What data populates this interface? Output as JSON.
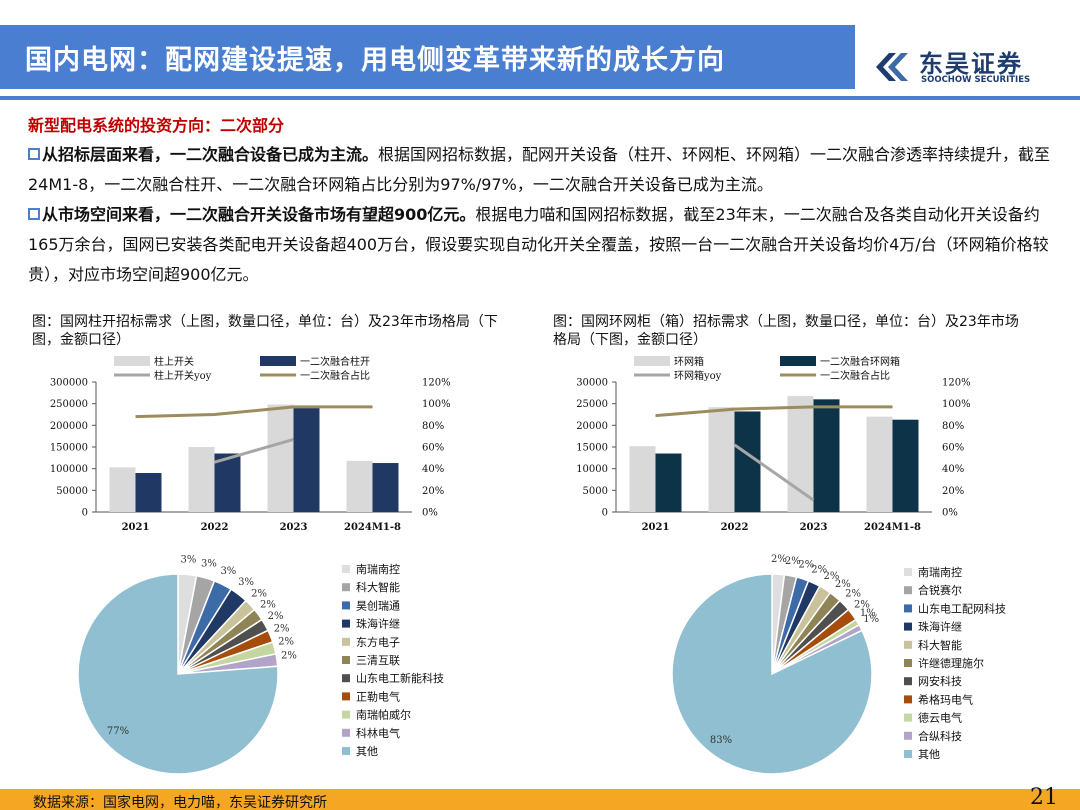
{
  "header": {
    "title": "国内电网：配网建设提速，用电侧变革带来新的成长方向",
    "logo_cn": "东吴证券",
    "logo_en": "SOOCHOW SECURITIES",
    "color": "#4a7ed1"
  },
  "subtitle": "新型配电系统的投资方向：二次部分",
  "para1": {
    "bold": "从招标层面来看，一二次融合设备已成为主流。",
    "text": "根据国网招标数据，配网开关设备（柱开、环网柜、环网箱）一二次融合渗透率持续提升，截至24M1-8，一二次融合柱开、一二次融合环网箱占比分别为97%/97%，一二次融合开关设备已成为主流。"
  },
  "para2": {
    "bold": "从市场空间来看，一二次融合开关设备市场有望超900亿元。",
    "text": "根据电力喵和国网招标数据，截至23年末，一二次融合及各类自动化开关设备约165万余台，国网已安装各类配电开关设备超400万台，假设要实现自动化开关全覆盖，按照一台一二次融合开关设备均价4万/台（环网箱价格较贵），对应市场空间超900亿元。"
  },
  "captions": {
    "left": "图：国网柱开招标需求（上图，数量口径，单位：台）及23年市场格局（下图，金额口径）",
    "right": "图：国网环网柜（箱）招标需求（上图，数量口径，单位：台）及23年市场格局（下图，金额口径）"
  },
  "footer": {
    "source": "数据来源：国家电网，电力喵，东吴证券研究所",
    "page": "21"
  },
  "chart_data": [
    {
      "type": "bar",
      "categories": [
        "2021",
        "2022",
        "2023",
        "2024M1-8"
      ],
      "series": [
        {
          "name": "柱上开关",
          "kind": "bar",
          "axis": "left",
          "color": "#d9d9d9",
          "values": [
            103000,
            150000,
            248000,
            118000
          ]
        },
        {
          "name": "一二次融合柱开",
          "kind": "bar",
          "axis": "left",
          "color": "#1f3864",
          "values": [
            90000,
            135000,
            243000,
            113000
          ]
        },
        {
          "name": "柱上开关yoy",
          "kind": "line",
          "axis": "right",
          "color": "#a6a6a6",
          "values": [
            null,
            0.46,
            0.67,
            null
          ]
        },
        {
          "name": "一二次融合占比",
          "kind": "line",
          "axis": "right",
          "color": "#9c8c5e",
          "values": [
            0.88,
            0.9,
            0.97,
            0.97
          ]
        }
      ],
      "ylim": [
        0,
        300000
      ],
      "yticks": [
        "300000",
        "250000",
        "200000",
        "150000",
        "100000",
        "50000",
        "0"
      ],
      "y2lim": [
        0,
        1.2
      ],
      "y2ticks": [
        "120%",
        "100%",
        "80%",
        "60%",
        "40%",
        "20%",
        "0%"
      ],
      "legend": "top"
    },
    {
      "type": "bar",
      "categories": [
        "2021",
        "2022",
        "2023",
        "2024M1-8"
      ],
      "series": [
        {
          "name": "环网箱",
          "kind": "bar",
          "axis": "left",
          "color": "#d9d9d9",
          "values": [
            15200,
            24200,
            26800,
            22000
          ]
        },
        {
          "name": "一二次融合环网箱",
          "kind": "bar",
          "axis": "left",
          "color": "#0d3349",
          "values": [
            13500,
            23200,
            26000,
            21300
          ]
        },
        {
          "name": "环网箱yoy",
          "kind": "line",
          "axis": "right",
          "color": "#a6a6a6",
          "values": [
            null,
            0.62,
            0.11,
            null
          ]
        },
        {
          "name": "一二次融合占比",
          "kind": "line",
          "axis": "right",
          "color": "#9c8c5e",
          "values": [
            0.89,
            0.95,
            0.97,
            0.97
          ]
        }
      ],
      "ylim": [
        0,
        30000
      ],
      "yticks": [
        "30000",
        "25000",
        "20000",
        "15000",
        "10000",
        "5000",
        "0"
      ],
      "y2lim": [
        0,
        1.2
      ],
      "y2ticks": [
        "120%",
        "100%",
        "80%",
        "60%",
        "40%",
        "20%",
        "0%"
      ],
      "legend": "top"
    },
    {
      "type": "pie",
      "labels": [
        "南瑞南控",
        "科大智能",
        "昊创瑞通",
        "珠海许继",
        "东方电子",
        "三清互联",
        "山东电工新能科技",
        "正勒电气",
        "南瑞帕威尔",
        "科林电气",
        "其他"
      ],
      "values": [
        3,
        3,
        3,
        3,
        2,
        2,
        2,
        2,
        2,
        2,
        77
      ],
      "value_labels": [
        "3%",
        "3%",
        "3%",
        "3%",
        "2%",
        "2%",
        "2%",
        "2%",
        "2%",
        "2%",
        "77%"
      ],
      "colors": [
        "#dedede",
        "#a5a5a5",
        "#3d6ba8",
        "#1f3864",
        "#c9c29a",
        "#8f8455",
        "#4f4f4f",
        "#a64d0e",
        "#c5d7a0",
        "#b2a4c9",
        "#8fbfd0"
      ],
      "legend": "right"
    },
    {
      "type": "pie",
      "labels": [
        "南瑞南控",
        "合锐赛尔",
        "山东电工配网科技",
        "珠海许继",
        "科大智能",
        "许继德理施尔",
        "网安科技",
        "希格玛电气",
        "德云电气",
        "合纵科技",
        "其他"
      ],
      "values": [
        2,
        2,
        2,
        2,
        2,
        2,
        2,
        2,
        1,
        1,
        83
      ],
      "value_labels": [
        "2%",
        "2%",
        "2%",
        "2%",
        "2%",
        "2%",
        "2%",
        "2%",
        "1%",
        "1%",
        "83%"
      ],
      "colors": [
        "#dedede",
        "#a5a5a5",
        "#3d6ba8",
        "#1f3864",
        "#c9c29a",
        "#8f8455",
        "#4f4f4f",
        "#a64d0e",
        "#c5d7a0",
        "#b2a4c9",
        "#8fbfd0"
      ],
      "legend": "right"
    }
  ]
}
